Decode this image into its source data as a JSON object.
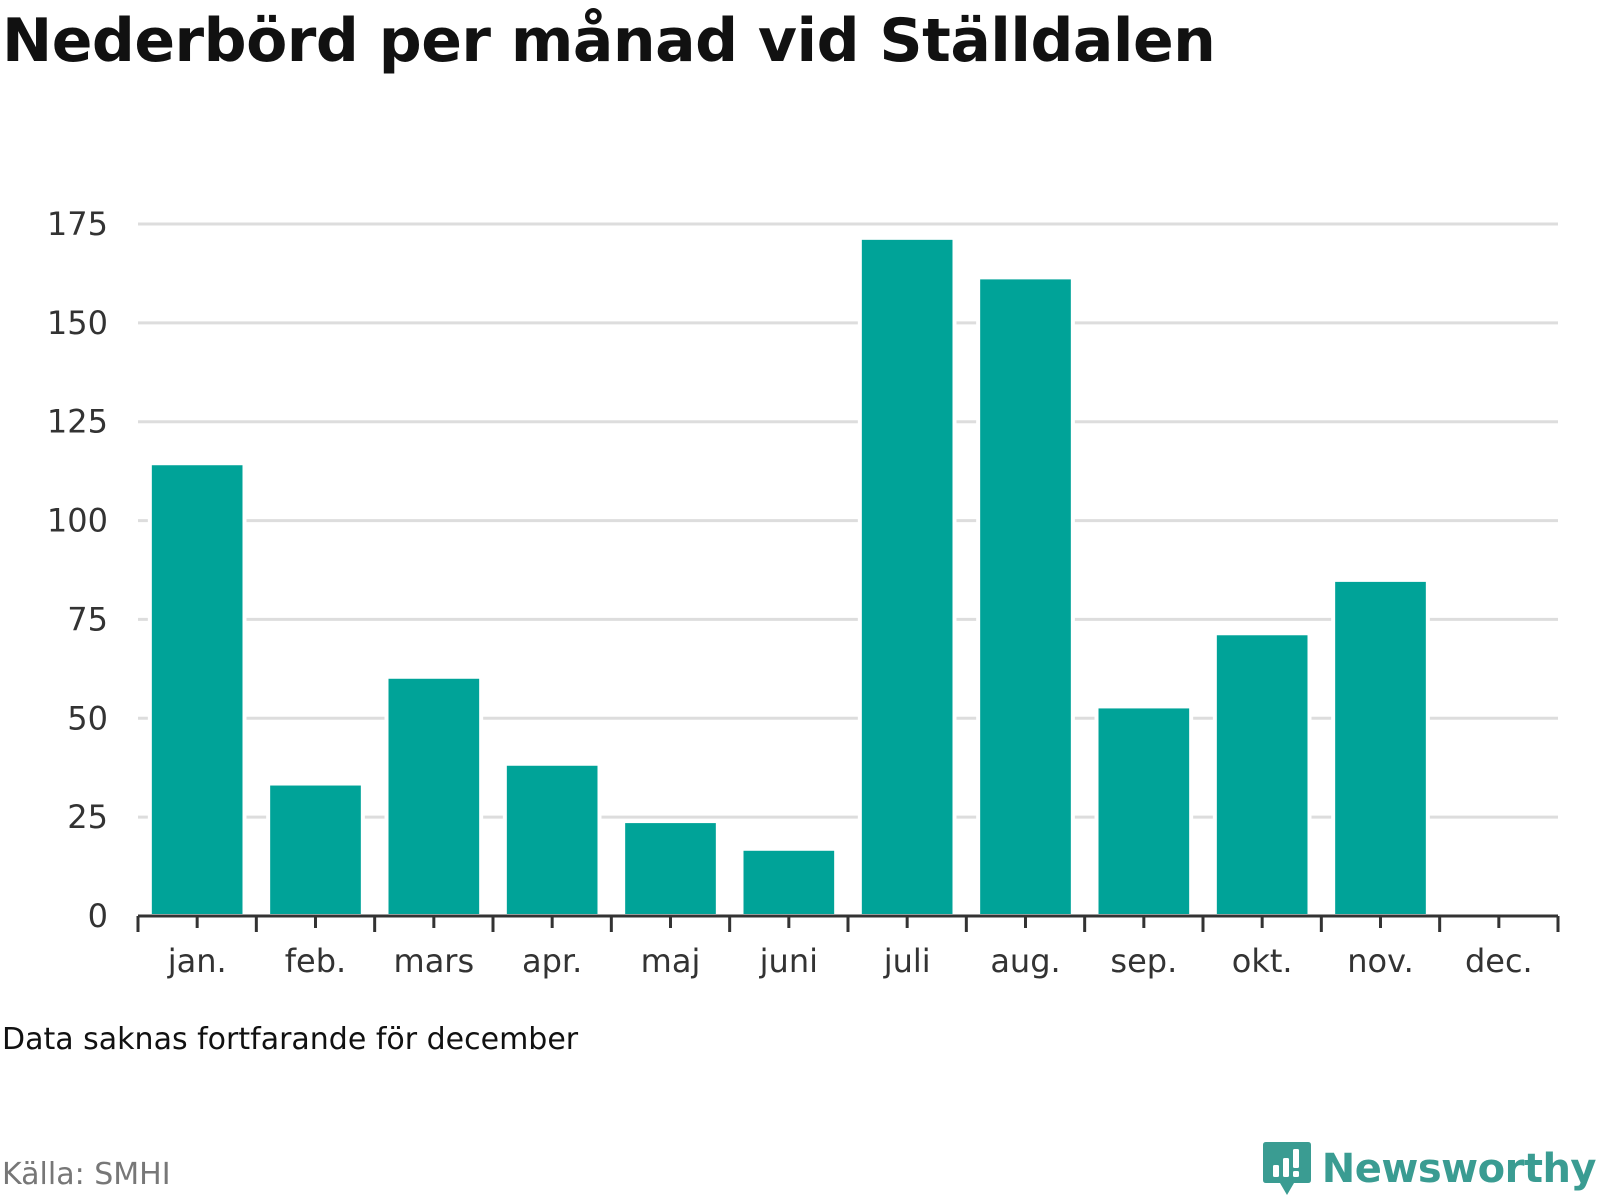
{
  "colors": {
    "bar": "#00a398",
    "grid": "#dddddd",
    "axis": "#333333",
    "brand": "#3a9c92"
  },
  "footer": {
    "note": "Data saknas fortfarande för december",
    "source": "Källa: SMHI",
    "brand_name": "Newsworthy",
    "brand_icon": "newsworthy-logo-icon"
  },
  "chart_data": {
    "type": "bar",
    "title": "Nederbörd per månad vid Ställdalen",
    "xlabel": "",
    "ylabel": "",
    "categories": [
      "jan.",
      "feb.",
      "mars",
      "apr.",
      "maj",
      "juni",
      "juli",
      "aug.",
      "sep.",
      "okt.",
      "nov.",
      "dec."
    ],
    "values": [
      114.5,
      33.5,
      60.5,
      38.5,
      24,
      17,
      171.5,
      161.5,
      53,
      71.5,
      85,
      null
    ],
    "ylim": [
      0,
      175
    ],
    "yticks": [
      0,
      25,
      50,
      75,
      100,
      125,
      150,
      175
    ],
    "grid": true,
    "legend": "none"
  }
}
